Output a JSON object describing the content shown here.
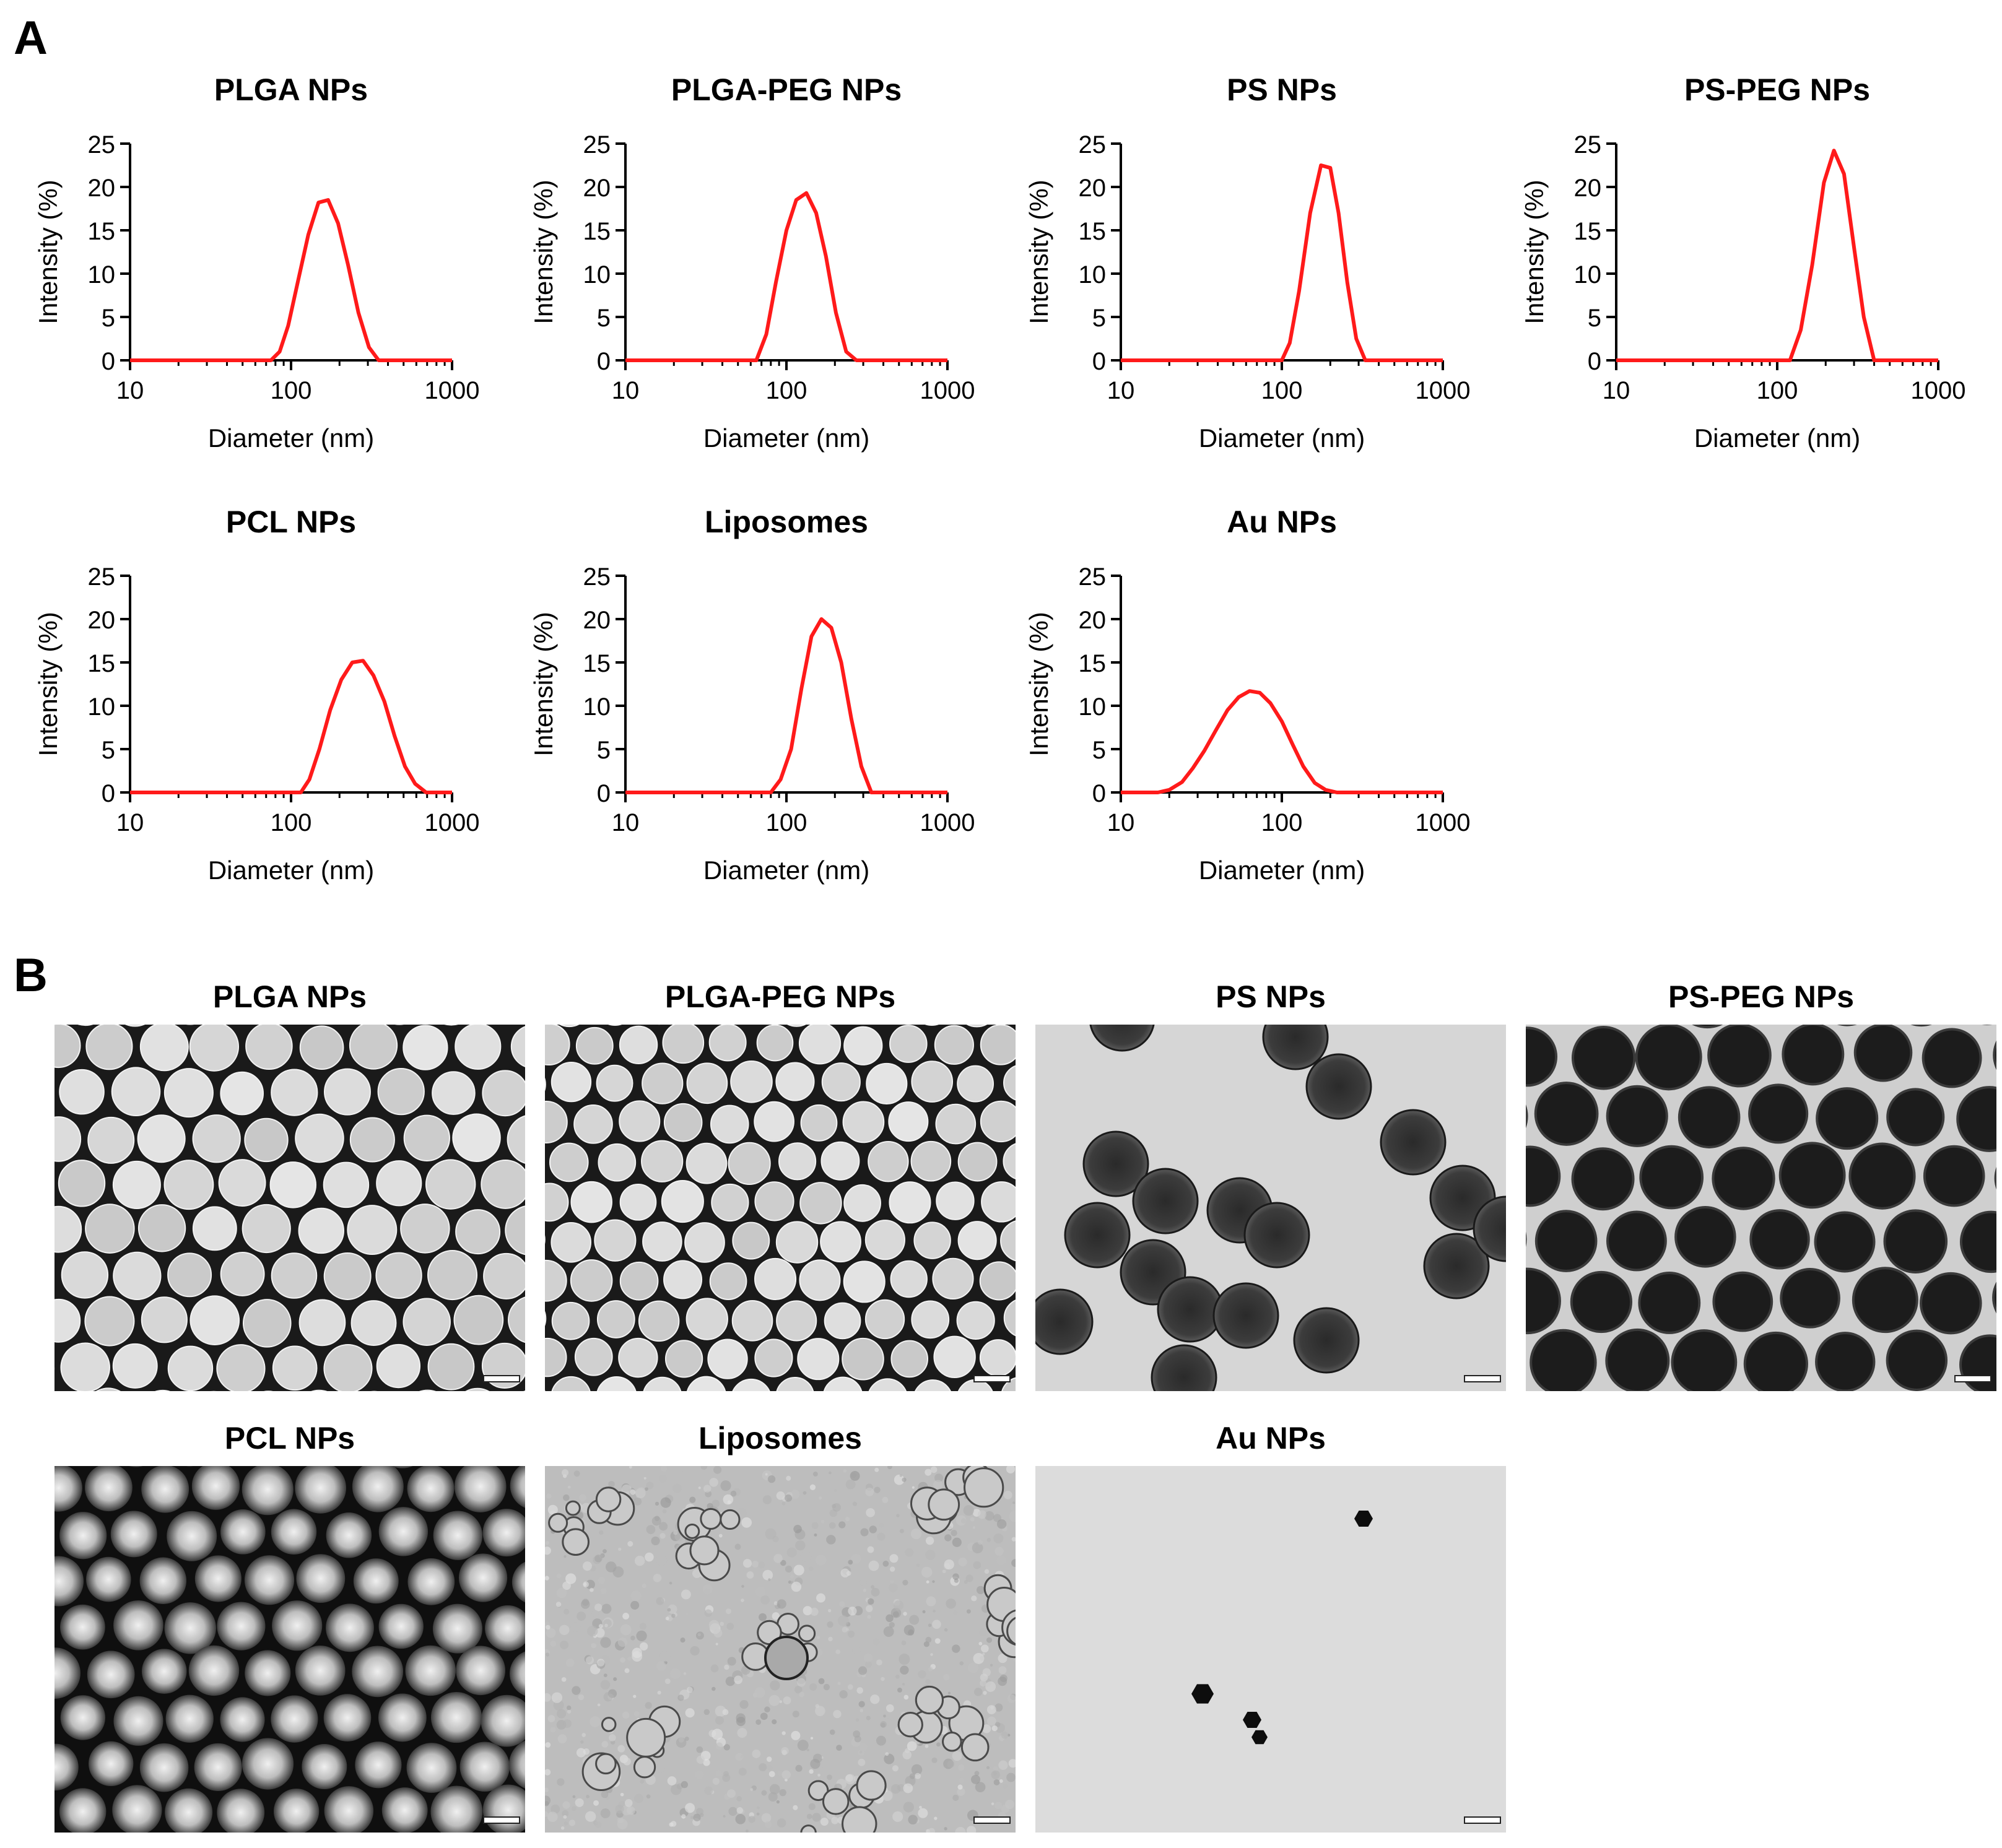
{
  "panel_labels": {
    "a": "A",
    "b": "B"
  },
  "colors": {
    "curve": "#ff1a1a",
    "axis": "#000000"
  },
  "chart_data": [
    {
      "id": "plga",
      "type": "line",
      "title": "PLGA NPs",
      "xlabel": "Diameter (nm)",
      "ylabel": "Intensity (%)",
      "xscale": "log",
      "xlim": [
        10,
        1000
      ],
      "ylim": [
        0,
        25
      ],
      "xticks": [
        "10",
        "100",
        "1000"
      ],
      "yticks": [
        "0",
        "5",
        "10",
        "15",
        "20",
        "25"
      ],
      "series": [
        {
          "x": [
            10,
            75,
            85,
            96,
            110,
            128,
            148,
            170,
            196,
            226,
            262,
            305,
            350,
            400,
            1000
          ],
          "y": [
            0,
            0,
            1,
            4,
            9,
            14.5,
            18.2,
            18.5,
            15.8,
            11,
            5.5,
            1.5,
            0,
            0,
            0
          ]
        }
      ]
    },
    {
      "id": "plga-peg",
      "type": "line",
      "title": "PLGA-PEG NPs",
      "xlabel": "Diameter (nm)",
      "ylabel": "Intensity (%)",
      "xscale": "log",
      "xlim": [
        10,
        1000
      ],
      "ylim": [
        0,
        25
      ],
      "xticks": [
        "10",
        "100",
        "1000"
      ],
      "yticks": [
        "0",
        "5",
        "10",
        "15",
        "20",
        "25"
      ],
      "series": [
        {
          "x": [
            10,
            65,
            75,
            86,
            100,
            115,
            133,
            153,
            176,
            203,
            235,
            272,
            1000
          ],
          "y": [
            0,
            0,
            3,
            9,
            15,
            18.5,
            19.3,
            17,
            12,
            5.5,
            1,
            0,
            0
          ]
        }
      ]
    },
    {
      "id": "ps",
      "type": "line",
      "title": "PS NPs",
      "xlabel": "Diameter (nm)",
      "ylabel": "Intensity (%)",
      "xscale": "log",
      "xlim": [
        10,
        1000
      ],
      "ylim": [
        0,
        25
      ],
      "xticks": [
        "10",
        "100",
        "1000"
      ],
      "yticks": [
        "0",
        "5",
        "10",
        "15",
        "20",
        "25"
      ],
      "series": [
        {
          "x": [
            10,
            100,
            112,
            128,
            150,
            175,
            200,
            225,
            255,
            290,
            330,
            380,
            1000
          ],
          "y": [
            0,
            0,
            2,
            8,
            17,
            22.5,
            22.2,
            17,
            9,
            2.5,
            0,
            0,
            0
          ]
        }
      ]
    },
    {
      "id": "ps-peg",
      "type": "line",
      "title": "PS-PEG NPs",
      "xlabel": "Diameter (nm)",
      "ylabel": "Intensity (%)",
      "xscale": "log",
      "xlim": [
        10,
        1000
      ],
      "ylim": [
        0,
        25
      ],
      "xticks": [
        "10",
        "100",
        "1000"
      ],
      "yticks": [
        "0",
        "5",
        "10",
        "15",
        "20",
        "25"
      ],
      "series": [
        {
          "x": [
            10,
            120,
            140,
            165,
            195,
            225,
            260,
            300,
            345,
            400,
            1000
          ],
          "y": [
            0,
            0,
            3.5,
            11,
            20.5,
            24.2,
            21.5,
            13,
            5,
            0,
            0
          ]
        }
      ]
    },
    {
      "id": "pcl",
      "type": "line",
      "title": "PCL NPs",
      "xlabel": "Diameter (nm)",
      "ylabel": "Intensity (%)",
      "xscale": "log",
      "xlim": [
        10,
        1000
      ],
      "ylim": [
        0,
        25
      ],
      "xticks": [
        "10",
        "100",
        "1000"
      ],
      "yticks": [
        "0",
        "5",
        "10",
        "15",
        "20",
        "25"
      ],
      "series": [
        {
          "x": [
            10,
            115,
            130,
            150,
            175,
            205,
            240,
            280,
            325,
            380,
            440,
            510,
            590,
            690,
            1000
          ],
          "y": [
            0,
            0,
            1.5,
            5,
            9.5,
            13,
            15,
            15.2,
            13.5,
            10.5,
            6.5,
            3,
            1,
            0,
            0
          ]
        }
      ]
    },
    {
      "id": "liposomes",
      "type": "line",
      "title": "Liposomes",
      "xlabel": "Diameter (nm)",
      "ylabel": "Intensity (%)",
      "xscale": "log",
      "xlim": [
        10,
        1000
      ],
      "ylim": [
        0,
        25
      ],
      "xticks": [
        "10",
        "100",
        "1000"
      ],
      "yticks": [
        "0",
        "5",
        "10",
        "15",
        "20",
        "25"
      ],
      "series": [
        {
          "x": [
            10,
            80,
            92,
            107,
            124,
            143,
            165,
            190,
            219,
            253,
            292,
            337,
            1000
          ],
          "y": [
            0,
            0,
            1.5,
            5,
            12,
            18,
            20,
            19,
            15,
            8.5,
            3,
            0,
            0
          ]
        }
      ]
    },
    {
      "id": "au",
      "type": "line",
      "title": "Au NPs",
      "xlabel": "Diameter (nm)",
      "ylabel": "Intensity (%)",
      "xscale": "log",
      "xlim": [
        10,
        1000
      ],
      "ylim": [
        0,
        25
      ],
      "xticks": [
        "10",
        "100",
        "1000"
      ],
      "yticks": [
        "0",
        "5",
        "10",
        "15",
        "20",
        "25"
      ],
      "series": [
        {
          "x": [
            10,
            17,
            20,
            24,
            28,
            33,
            39,
            46,
            54,
            63,
            73,
            85,
            100,
            117,
            136,
            160,
            187,
            220,
            260,
            1000
          ],
          "y": [
            0,
            0,
            0.3,
            1.2,
            2.8,
            4.8,
            7.2,
            9.5,
            11,
            11.7,
            11.5,
            10.3,
            8.2,
            5.5,
            3,
            1.1,
            0.3,
            0,
            0,
            0
          ]
        }
      ]
    }
  ],
  "tem_images": [
    {
      "id": "plga",
      "title": "PLGA NPs",
      "style": "light-on-dark-packed"
    },
    {
      "id": "plga-peg",
      "title": "PLGA-PEG NPs",
      "style": "light-on-dark-packed-small"
    },
    {
      "id": "ps",
      "title": "PS NPs",
      "style": "dark-on-light-sparse"
    },
    {
      "id": "ps-peg",
      "title": "PS-PEG NPs",
      "style": "dark-on-light-packed"
    },
    {
      "id": "pcl",
      "title": "PCL NPs",
      "style": "glowing-spheres"
    },
    {
      "id": "liposomes",
      "title": "Liposomes",
      "style": "grainy-vesicles"
    },
    {
      "id": "au",
      "title": "Au NPs",
      "style": "few-dark-particles"
    }
  ]
}
